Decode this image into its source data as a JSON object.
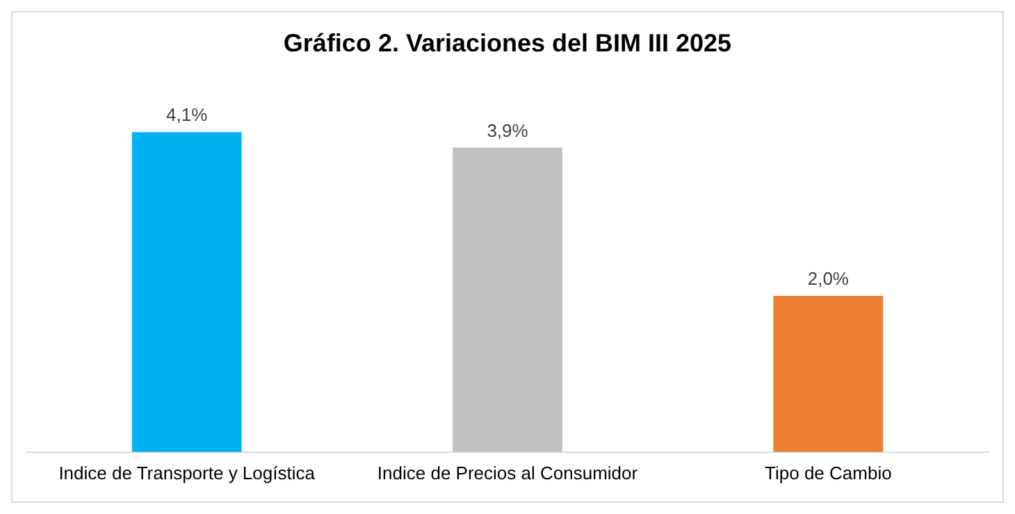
{
  "chart_data": {
    "type": "bar",
    "title": "Gráfico 2. Variaciones del BIM III 2025",
    "categories": [
      "Indice de Transporte y Logística",
      "Indice de Precios al Consumidor",
      "Tipo de Cambio"
    ],
    "values": [
      4.1,
      3.9,
      2.0
    ],
    "colors": [
      "#00b0f0",
      "#bfbfbf",
      "#ed7d31"
    ],
    "value_labels": [
      "4,1%",
      "3,9%",
      "2,0%"
    ],
    "grid": false,
    "legend": false
  }
}
